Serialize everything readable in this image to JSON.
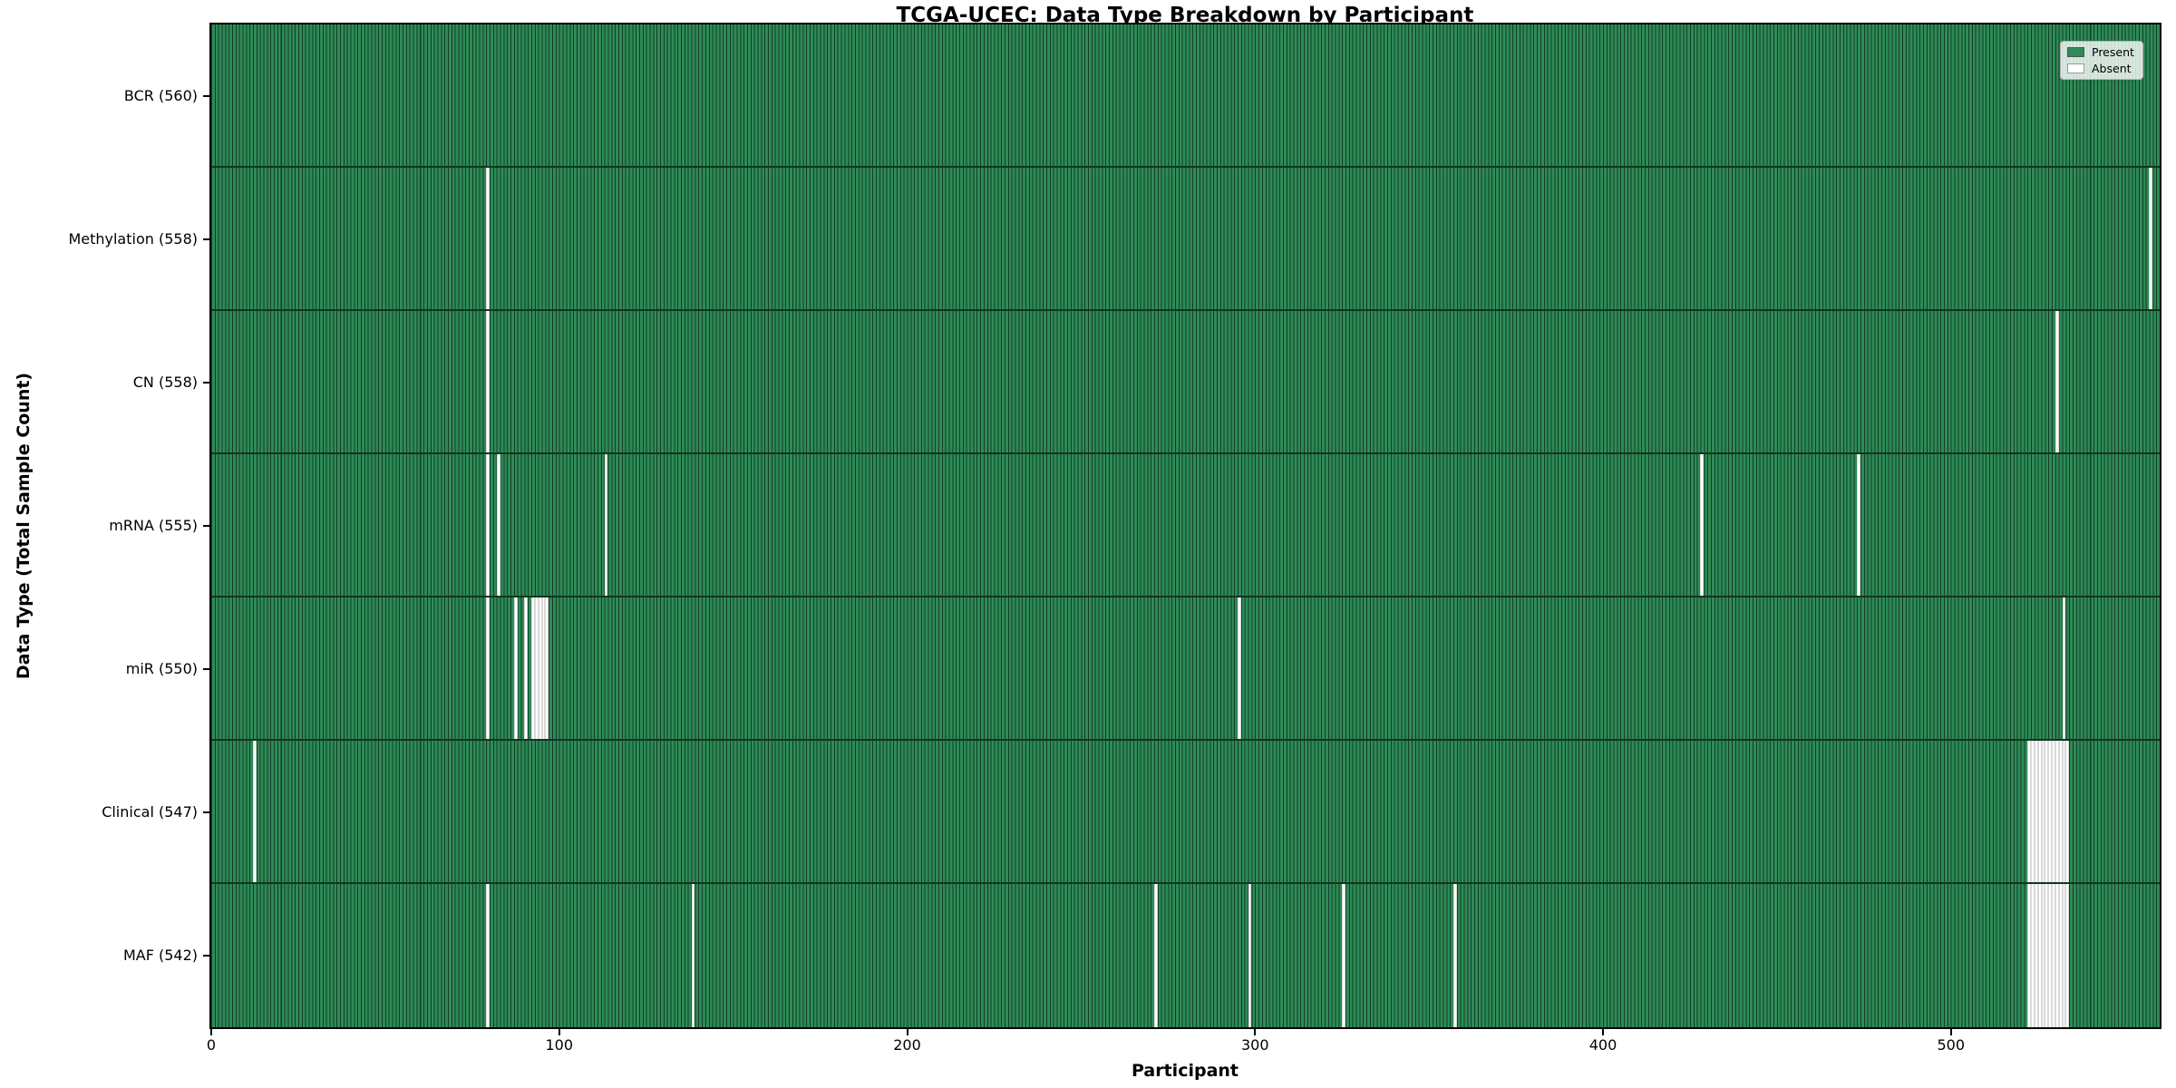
{
  "title": "TCGA-UCEC: Data Type Breakdown by Participant",
  "xlabel": "Participant",
  "ylabel": "Data Type (Total Sample Count)",
  "legend": {
    "present_label": "Present",
    "absent_label": "Absent",
    "position": "upper right"
  },
  "colors": {
    "present_fill": "#2e8b57",
    "present_edge": "#133d27",
    "absent_fill": "#ffffff",
    "absent_edge": "#d9d9d9",
    "spine": "#000000"
  },
  "chart_data": {
    "type": "heatmap",
    "title": "TCGA-UCEC: Data Type Breakdown by Participant",
    "xlabel": "Participant",
    "ylabel": "Data Type (Total Sample Count)",
    "legend": [
      "Present",
      "Absent"
    ],
    "legend_position": "upper right",
    "grid": false,
    "n_participants": 560,
    "xlim": [
      0,
      560
    ],
    "x_ticks": [
      0,
      100,
      200,
      300,
      400,
      500
    ],
    "rows": [
      {
        "data_type": "BCR",
        "count": 560,
        "label": "BCR (560)",
        "absent_participants": []
      },
      {
        "data_type": "Methylation",
        "count": 558,
        "label": "Methylation (558)",
        "absent_participants": [
          79,
          557
        ]
      },
      {
        "data_type": "CN",
        "count": 558,
        "label": "CN (558)",
        "absent_participants": [
          79,
          530
        ]
      },
      {
        "data_type": "mRNA",
        "count": 555,
        "label": "mRNA (555)",
        "absent_participants": [
          79,
          82,
          113,
          428,
          473
        ]
      },
      {
        "data_type": "miR",
        "count": 550,
        "label": "miR (550)",
        "absent_participants": [
          79,
          87,
          90,
          92,
          93,
          94,
          95,
          96,
          295,
          532
        ]
      },
      {
        "data_type": "Clinical",
        "count": 547,
        "label": "Clinical (547)",
        "absent_participants": [
          12,
          522,
          523,
          524,
          525,
          526,
          527,
          528,
          529,
          530,
          531,
          532,
          533
        ]
      },
      {
        "data_type": "MAF",
        "count": 542,
        "label": "MAF (542)",
        "absent_participants": [
          79,
          138,
          271,
          298,
          325,
          357,
          522,
          523,
          524,
          525,
          526,
          527,
          528,
          529,
          530,
          531,
          532,
          533
        ]
      }
    ]
  }
}
